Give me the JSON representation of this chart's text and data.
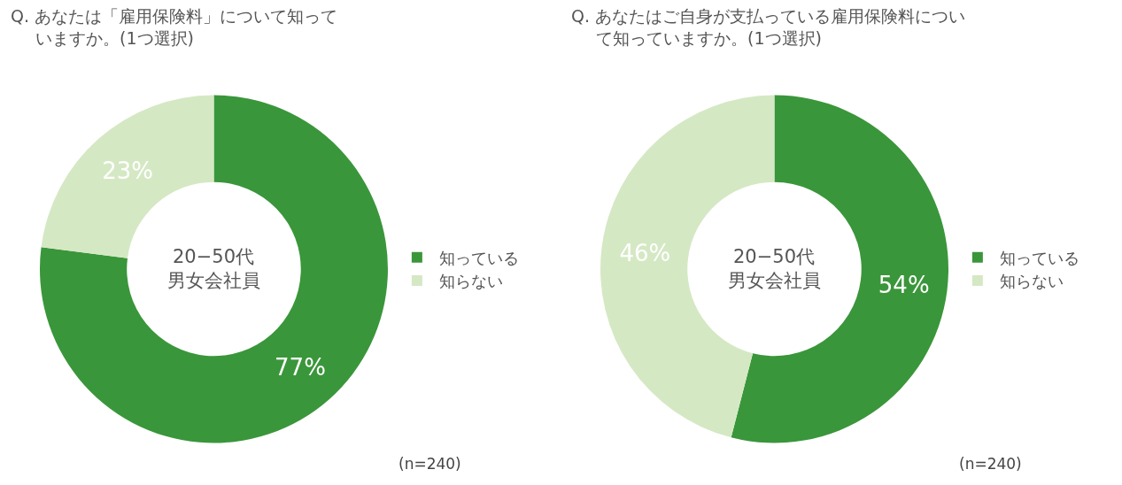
{
  "chart_data": [
    {
      "type": "donut",
      "title": "Q. あなたは「雇用保険料」について知っていますか。(1つ選択)",
      "categories": [
        "知っている",
        "知らない"
      ],
      "values": [
        77,
        23
      ],
      "value_labels": [
        "77%",
        "23%"
      ],
      "colors": [
        "#3a963a",
        "#d5e8c4"
      ],
      "legend": "right",
      "annotations": [
        "20−50代男女会社員",
        "(n=240)"
      ]
    },
    {
      "type": "donut",
      "title": "Q. あなたはご自身が支払っている雇用保険料について知っていますか。(1つ選択)",
      "categories": [
        "知っている",
        "知らない"
      ],
      "values": [
        54,
        46
      ],
      "value_labels": [
        "54%",
        "46%"
      ],
      "colors": [
        "#3a963a",
        "#d5e8c4"
      ],
      "legend": "right",
      "annotations": [
        "20−50代男女会社員",
        "(n=240)"
      ]
    }
  ]
}
